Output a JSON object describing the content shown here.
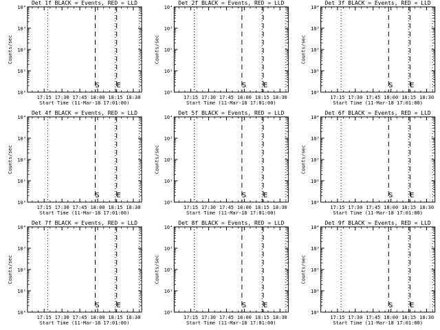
{
  "window": {
    "background": "#ffffff",
    "foreground": "#000000"
  },
  "chart_data": [
    {
      "type": "line",
      "title": "Det 1f BLACK = Events, RED = LLD",
      "xlabel": "Start Time (11-Mar-18 17:01:00)",
      "ylabel": "Counts/sec",
      "x_ticks": [
        "17:15",
        "17:30",
        "17:45",
        "18:00",
        "18:15",
        "18:30"
      ],
      "x_range": [
        "17:01",
        "18:37"
      ],
      "y_scale": "log",
      "y_range": [
        1,
        10000
      ],
      "y_ticks": [
        "10⁰",
        "10¹",
        "10²",
        "10³",
        "10⁴"
      ],
      "markers": [
        {
          "label": "",
          "style": "dotted",
          "x": "17:01"
        },
        {
          "label": "",
          "style": "dotted",
          "x": "17:18"
        },
        {
          "label": "S",
          "style": "dashed",
          "x": "17:58"
        },
        {
          "label": "",
          "style": "dotted",
          "x": "18:15"
        },
        {
          "label": "E",
          "style": "dashed",
          "x": "18:16"
        },
        {
          "label": "",
          "style": "dotted",
          "x": "18:35"
        }
      ],
      "series": []
    },
    {
      "type": "line",
      "title": "Det 2f BLACK = Events, RED = LLD",
      "xlabel": "Start Time (11-Mar-18 17:01:00)",
      "ylabel": "Counts/sec",
      "x_ticks": [
        "17:15",
        "17:30",
        "17:45",
        "18:00",
        "18:15",
        "18:30"
      ],
      "x_range": [
        "17:01",
        "18:37"
      ],
      "y_scale": "log",
      "y_range": [
        1,
        10000
      ],
      "y_ticks": [
        "10⁰",
        "10¹",
        "10²",
        "10³",
        "10⁴"
      ],
      "markers": [
        {
          "label": "",
          "style": "dotted",
          "x": "17:01"
        },
        {
          "label": "",
          "style": "dotted",
          "x": "17:18"
        },
        {
          "label": "S",
          "style": "dashed",
          "x": "17:58"
        },
        {
          "label": "",
          "style": "dotted",
          "x": "18:15"
        },
        {
          "label": "E",
          "style": "dashed",
          "x": "18:16"
        },
        {
          "label": "",
          "style": "dotted",
          "x": "18:35"
        }
      ],
      "series": []
    },
    {
      "type": "line",
      "title": "Det 3f BLACK = Events, RED = LLD",
      "xlabel": "Start Time (11-Mar-18 17:01:00)",
      "ylabel": "Counts/sec",
      "x_ticks": [
        "17:15",
        "17:30",
        "17:45",
        "18:00",
        "18:15",
        "18:30"
      ],
      "x_range": [
        "17:01",
        "18:37"
      ],
      "y_scale": "log",
      "y_range": [
        1,
        10000
      ],
      "y_ticks": [
        "10⁰",
        "10¹",
        "10²",
        "10³",
        "10⁴"
      ],
      "markers": [
        {
          "label": "",
          "style": "dotted",
          "x": "17:01"
        },
        {
          "label": "",
          "style": "dotted",
          "x": "17:18"
        },
        {
          "label": "S",
          "style": "dashed",
          "x": "17:58"
        },
        {
          "label": "",
          "style": "dotted",
          "x": "18:15"
        },
        {
          "label": "E",
          "style": "dashed",
          "x": "18:16"
        },
        {
          "label": "",
          "style": "dotted",
          "x": "18:35"
        }
      ],
      "series": []
    },
    {
      "type": "line",
      "title": "Det 4f BLACK = Events, RED = LLD",
      "xlabel": "Start Time (11-Mar-18 17:01:00)",
      "ylabel": "Counts/sec",
      "x_ticks": [
        "17:15",
        "17:30",
        "17:45",
        "18:00",
        "18:15",
        "18:30"
      ],
      "x_range": [
        "17:01",
        "18:37"
      ],
      "y_scale": "log",
      "y_range": [
        1,
        10000
      ],
      "y_ticks": [
        "10⁰",
        "10¹",
        "10²",
        "10³",
        "10⁴"
      ],
      "markers": [
        {
          "label": "",
          "style": "dotted",
          "x": "17:01"
        },
        {
          "label": "",
          "style": "dotted",
          "x": "17:18"
        },
        {
          "label": "S",
          "style": "dashed",
          "x": "17:58"
        },
        {
          "label": "",
          "style": "dotted",
          "x": "18:15"
        },
        {
          "label": "E",
          "style": "dashed",
          "x": "18:16"
        },
        {
          "label": "",
          "style": "dotted",
          "x": "18:35"
        }
      ],
      "series": []
    },
    {
      "type": "line",
      "title": "Det 5f BLACK = Events, RED = LLD",
      "xlabel": "Start Time (11-Mar-18 17:01:00)",
      "ylabel": "Counts/sec",
      "x_ticks": [
        "17:15",
        "17:30",
        "17:45",
        "18:00",
        "18:15",
        "18:30"
      ],
      "x_range": [
        "17:01",
        "18:37"
      ],
      "y_scale": "log",
      "y_range": [
        1,
        10000
      ],
      "y_ticks": [
        "10⁰",
        "10¹",
        "10²",
        "10³",
        "10⁴"
      ],
      "markers": [
        {
          "label": "",
          "style": "dotted",
          "x": "17:01"
        },
        {
          "label": "",
          "style": "dotted",
          "x": "17:18"
        },
        {
          "label": "S",
          "style": "dashed",
          "x": "17:58"
        },
        {
          "label": "",
          "style": "dotted",
          "x": "18:15"
        },
        {
          "label": "E",
          "style": "dashed",
          "x": "18:16"
        },
        {
          "label": "",
          "style": "dotted",
          "x": "18:35"
        }
      ],
      "series": []
    },
    {
      "type": "line",
      "title": "Det 6f BLACK = Events, RED = LLD",
      "xlabel": "Start Time (11-Mar-18 17:01:00)",
      "ylabel": "Counts/sec",
      "x_ticks": [
        "17:15",
        "17:30",
        "17:45",
        "18:00",
        "18:15",
        "18:30"
      ],
      "x_range": [
        "17:01",
        "18:37"
      ],
      "y_scale": "log",
      "y_range": [
        1,
        10000
      ],
      "y_ticks": [
        "10⁰",
        "10¹",
        "10²",
        "10³",
        "10⁴"
      ],
      "markers": [
        {
          "label": "",
          "style": "dotted",
          "x": "17:01"
        },
        {
          "label": "",
          "style": "dotted",
          "x": "17:18"
        },
        {
          "label": "S",
          "style": "dashed",
          "x": "17:58"
        },
        {
          "label": "",
          "style": "dotted",
          "x": "18:15"
        },
        {
          "label": "E",
          "style": "dashed",
          "x": "18:16"
        },
        {
          "label": "",
          "style": "dotted",
          "x": "18:35"
        }
      ],
      "series": []
    },
    {
      "type": "line",
      "title": "Det 7f BLACK = Events, RED = LLD",
      "xlabel": "Start Time (11-Mar-18 17:01:00)",
      "ylabel": "Counts/sec",
      "x_ticks": [
        "17:15",
        "17:30",
        "17:45",
        "18:00",
        "18:15",
        "18:30"
      ],
      "x_range": [
        "17:01",
        "18:37"
      ],
      "y_scale": "log",
      "y_range": [
        1,
        10000
      ],
      "y_ticks": [
        "10⁰",
        "10¹",
        "10²",
        "10³",
        "10⁴"
      ],
      "markers": [
        {
          "label": "",
          "style": "dotted",
          "x": "17:01"
        },
        {
          "label": "",
          "style": "dotted",
          "x": "17:18"
        },
        {
          "label": "S",
          "style": "dashed",
          "x": "17:58"
        },
        {
          "label": "",
          "style": "dotted",
          "x": "18:15"
        },
        {
          "label": "E",
          "style": "dashed",
          "x": "18:16"
        },
        {
          "label": "",
          "style": "dotted",
          "x": "18:35"
        }
      ],
      "series": []
    },
    {
      "type": "line",
      "title": "Det 8f BLACK = Events, RED = LLD",
      "xlabel": "Start Time (11-Mar-18 17:01:00)",
      "ylabel": "Counts/sec",
      "x_ticks": [
        "17:15",
        "17:30",
        "17:45",
        "18:00",
        "18:15",
        "18:30"
      ],
      "x_range": [
        "17:01",
        "18:37"
      ],
      "y_scale": "log",
      "y_range": [
        1,
        10000
      ],
      "y_ticks": [
        "10⁰",
        "10¹",
        "10²",
        "10³",
        "10⁴"
      ],
      "markers": [
        {
          "label": "",
          "style": "dotted",
          "x": "17:01"
        },
        {
          "label": "",
          "style": "dotted",
          "x": "17:18"
        },
        {
          "label": "S",
          "style": "dashed",
          "x": "17:58"
        },
        {
          "label": "",
          "style": "dotted",
          "x": "18:15"
        },
        {
          "label": "E",
          "style": "dashed",
          "x": "18:16"
        },
        {
          "label": "",
          "style": "dotted",
          "x": "18:35"
        }
      ],
      "series": []
    },
    {
      "type": "line",
      "title": "Det 9f BLACK = Events, RED = LLD",
      "xlabel": "Start Time (11-Mar-18 17:01:00)",
      "ylabel": "Counts/sec",
      "x_ticks": [
        "17:15",
        "17:30",
        "17:45",
        "18:00",
        "18:15",
        "18:30"
      ],
      "x_range": [
        "17:01",
        "18:37"
      ],
      "y_scale": "log",
      "y_range": [
        1,
        10000
      ],
      "y_ticks": [
        "10⁰",
        "10¹",
        "10²",
        "10³",
        "10⁴"
      ],
      "markers": [
        {
          "label": "",
          "style": "dotted",
          "x": "17:01"
        },
        {
          "label": "",
          "style": "dotted",
          "x": "17:18"
        },
        {
          "label": "S",
          "style": "dashed",
          "x": "17:58"
        },
        {
          "label": "",
          "style": "dotted",
          "x": "18:15"
        },
        {
          "label": "E",
          "style": "dashed",
          "x": "18:16"
        },
        {
          "label": "",
          "style": "dotted",
          "x": "18:35"
        }
      ],
      "series": []
    }
  ]
}
